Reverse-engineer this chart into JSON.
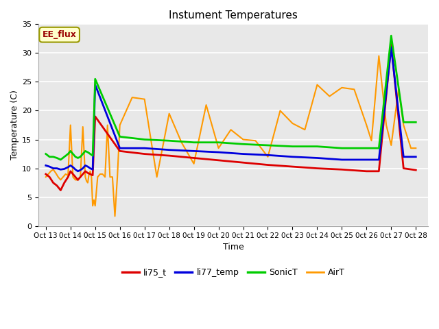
{
  "title": "Instument Temperatures",
  "xlabel": "Time",
  "ylabel": "Temperature (C)",
  "background_color": "#e8e8e8",
  "annotation_text": "EE_flux",
  "annotation_bg": "#ffffcc",
  "annotation_border": "#999900",
  "series": {
    "li75_t": {
      "color": "#dd0000",
      "linewidth": 2.0
    },
    "li77_temp": {
      "color": "#0000dd",
      "linewidth": 2.0
    },
    "SonicT": {
      "color": "#00cc00",
      "linewidth": 2.0
    },
    "AirT": {
      "color": "#ff9900",
      "linewidth": 1.5
    }
  },
  "li75_x": [
    0,
    0.15,
    0.3,
    0.45,
    0.6,
    0.75,
    0.9,
    1.0,
    1.1,
    1.2,
    1.3,
    1.4,
    1.5,
    1.6,
    1.7,
    1.8,
    1.9,
    2.0,
    3.0,
    4.0,
    5.0,
    6.0,
    7.0,
    8.0,
    9.0,
    10.0,
    11.0,
    12.0,
    13.0,
    13.5,
    14.0,
    14.5,
    15.0
  ],
  "li75_y": [
    9.0,
    8.5,
    7.5,
    7.0,
    6.2,
    7.5,
    8.5,
    9.5,
    9.0,
    8.5,
    8.0,
    8.5,
    9.0,
    9.5,
    9.2,
    9.0,
    8.8,
    19.0,
    13.0,
    12.5,
    12.2,
    11.8,
    11.4,
    11.0,
    10.6,
    10.3,
    10.0,
    9.8,
    9.5,
    9.5,
    31.5,
    10.0,
    9.7
  ],
  "li77_x": [
    0,
    0.15,
    0.3,
    0.45,
    0.6,
    0.75,
    0.9,
    1.0,
    1.1,
    1.2,
    1.3,
    1.4,
    1.5,
    1.6,
    1.7,
    1.8,
    1.9,
    2.0,
    3.0,
    4.0,
    5.0,
    6.0,
    7.0,
    8.0,
    9.0,
    10.0,
    11.0,
    12.0,
    13.0,
    13.5,
    14.0,
    14.5,
    15.0
  ],
  "li77_y": [
    10.5,
    10.3,
    10.0,
    10.0,
    9.8,
    9.9,
    10.2,
    10.5,
    10.2,
    9.8,
    9.5,
    9.7,
    10.0,
    10.5,
    10.3,
    10.0,
    9.8,
    24.5,
    13.5,
    13.5,
    13.2,
    13.0,
    12.8,
    12.5,
    12.3,
    12.0,
    11.8,
    11.5,
    11.5,
    11.5,
    31.0,
    12.0,
    12.0
  ],
  "sonic_x": [
    0,
    0.15,
    0.3,
    0.45,
    0.6,
    0.75,
    0.9,
    1.0,
    1.1,
    1.2,
    1.3,
    1.4,
    1.5,
    1.6,
    1.7,
    1.8,
    1.9,
    2.0,
    3.0,
    4.0,
    5.0,
    6.0,
    7.0,
    8.0,
    9.0,
    10.0,
    11.0,
    12.0,
    13.0,
    13.5,
    14.0,
    14.5,
    15.0
  ],
  "sonic_y": [
    12.5,
    12.0,
    12.0,
    11.8,
    11.5,
    12.0,
    12.5,
    13.0,
    12.5,
    12.0,
    11.8,
    12.0,
    12.5,
    13.0,
    12.8,
    12.5,
    12.2,
    25.5,
    15.5,
    15.0,
    14.8,
    14.5,
    14.5,
    14.2,
    14.0,
    13.8,
    13.8,
    13.5,
    13.5,
    13.5,
    33.0,
    18.0,
    18.0
  ],
  "airt_x": [
    0,
    0.1,
    0.2,
    0.3,
    0.4,
    0.5,
    0.6,
    0.7,
    0.8,
    0.9,
    1.0,
    1.1,
    1.2,
    1.3,
    1.4,
    1.5,
    1.6,
    1.65,
    1.7,
    1.75,
    1.8,
    1.85,
    1.9,
    1.95,
    2.0,
    2.1,
    2.2,
    2.3,
    2.4,
    2.5,
    2.6,
    2.7,
    2.8,
    2.9,
    3.0,
    3.5,
    4.0,
    4.5,
    5.0,
    5.5,
    6.0,
    6.5,
    7.0,
    7.5,
    8.0,
    8.5,
    9.0,
    9.5,
    10.0,
    10.5,
    11.0,
    11.5,
    12.0,
    12.5,
    13.0,
    13.2,
    13.5,
    13.8,
    14.0,
    14.3,
    14.5,
    14.8,
    15.0
  ],
  "airt_y": [
    8.5,
    9.0,
    9.5,
    9.8,
    9.2,
    8.5,
    8.0,
    8.5,
    9.0,
    8.8,
    17.5,
    8.5,
    8.0,
    8.0,
    8.5,
    17.2,
    8.5,
    7.8,
    7.5,
    9.0,
    9.5,
    8.5,
    3.5,
    4.5,
    3.5,
    8.5,
    9.0,
    9.0,
    8.5,
    17.5,
    8.5,
    8.5,
    1.7,
    8.5,
    17.5,
    22.3,
    22.0,
    8.5,
    19.5,
    14.5,
    10.8,
    21.0,
    13.5,
    16.7,
    15.0,
    14.8,
    12.0,
    20.0,
    17.8,
    16.7,
    24.5,
    22.5,
    24.0,
    23.7,
    17.5,
    14.8,
    29.5,
    17.5,
    14.0,
    23.8,
    17.5,
    13.5,
    13.5
  ],
  "x_ticks": [
    0,
    1,
    2,
    3,
    4,
    5,
    6,
    7,
    8,
    9,
    10,
    11,
    12,
    13,
    14,
    15
  ],
  "x_labels": [
    "Oct 13",
    "0ct 14",
    "0ct 15",
    "0ct 16",
    "0ct 17",
    "0ct 18",
    "0ct 19",
    "0ct 20",
    "0ct 21",
    "0ct 22",
    "0ct 23",
    "0ct 24",
    "0ct 25",
    "0ct 26",
    "0ct 27",
    "0ct 28"
  ],
  "y_ticks": [
    0,
    5,
    10,
    15,
    20,
    25,
    30,
    35
  ],
  "ylim": [
    0,
    35
  ],
  "xlim": [
    -0.3,
    15.5
  ]
}
